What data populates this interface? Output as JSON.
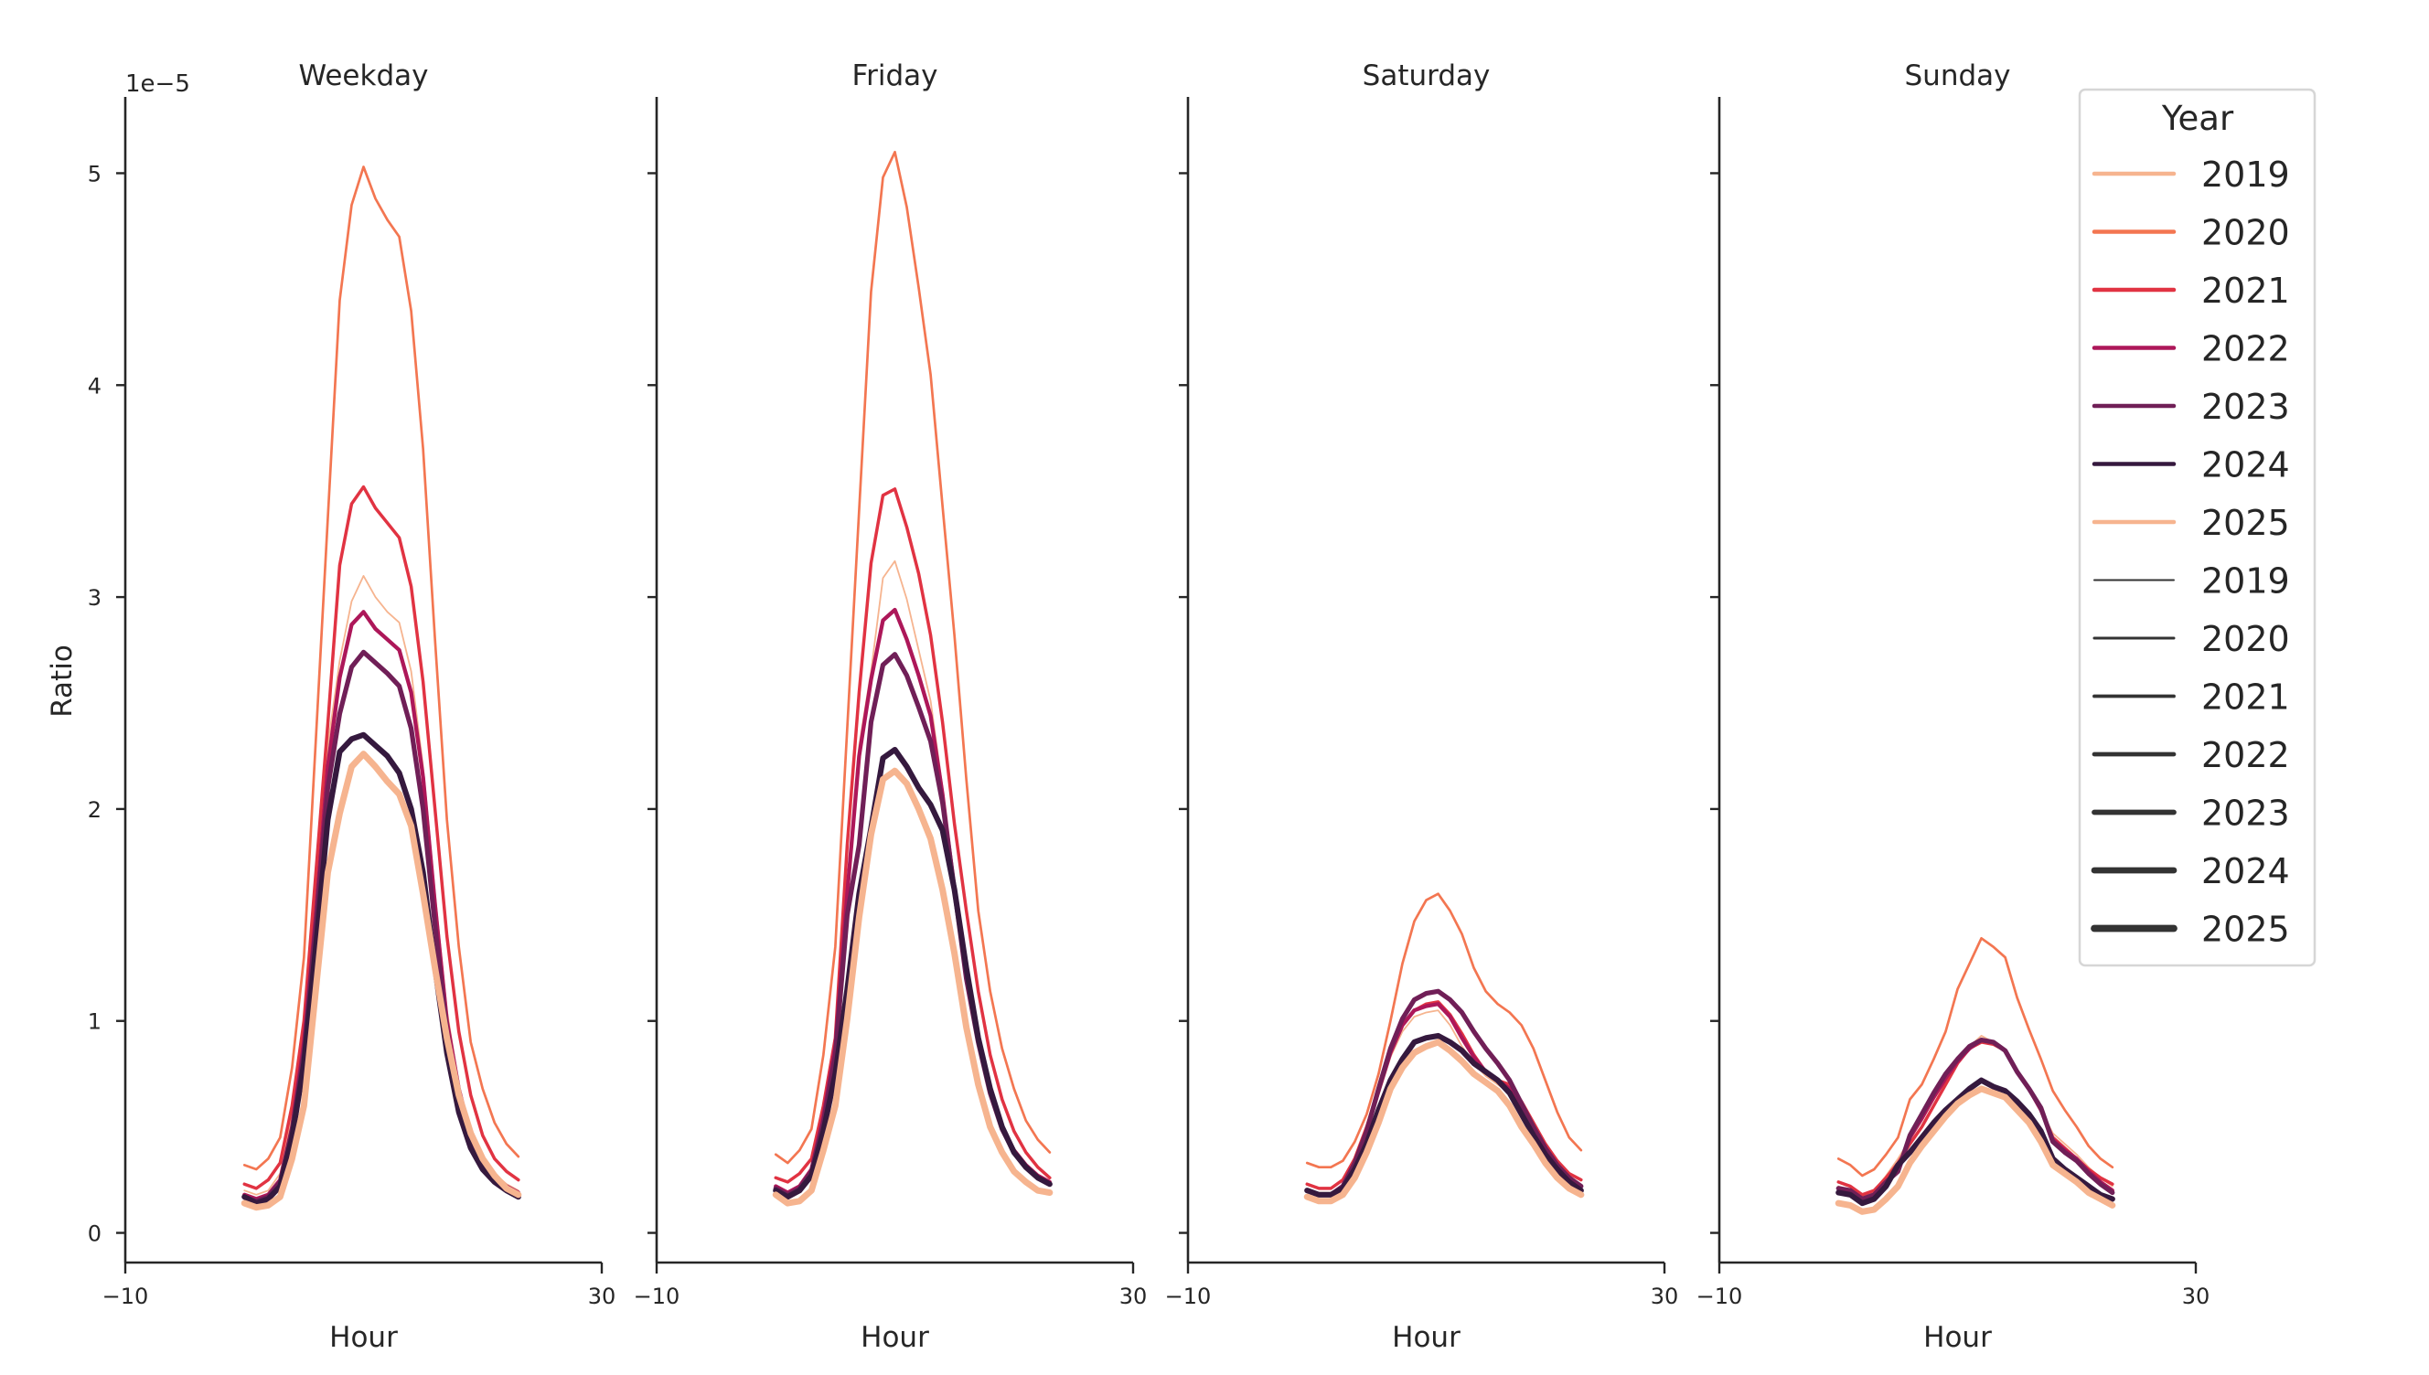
{
  "chart_data": [
    {
      "type": "line",
      "title": "Weekday",
      "xlabel": "Hour",
      "ylabel": "Ratio",
      "y_offset_label": "1e−5",
      "xlim": [
        -10,
        30
      ],
      "ylim": [
        -0.14,
        5.36
      ],
      "xticks": [
        -10,
        30
      ],
      "yticks": [
        0,
        1,
        2,
        3,
        4,
        5
      ],
      "grid": false,
      "x": [
        0,
        1,
        2,
        3,
        4,
        5,
        6,
        7,
        8,
        9,
        10,
        11,
        12,
        13,
        14,
        15,
        16,
        17,
        18,
        19,
        20,
        21,
        22,
        23
      ],
      "series": [
        {
          "name": "2019",
          "values": [
            0.2,
            0.18,
            0.2,
            0.28,
            0.55,
            0.95,
            1.6,
            2.3,
            2.7,
            2.98,
            3.1,
            3.0,
            2.93,
            2.88,
            2.65,
            2.2,
            1.6,
            1.05,
            0.7,
            0.48,
            0.35,
            0.28,
            0.23,
            0.2
          ]
        },
        {
          "name": "2020",
          "values": [
            0.32,
            0.3,
            0.35,
            0.45,
            0.78,
            1.3,
            2.33,
            3.37,
            4.4,
            4.85,
            5.03,
            4.88,
            4.78,
            4.7,
            4.35,
            3.7,
            2.8,
            1.95,
            1.35,
            0.9,
            0.68,
            0.52,
            0.42,
            0.36
          ]
        },
        {
          "name": "2021",
          "values": [
            0.23,
            0.21,
            0.25,
            0.33,
            0.6,
            1.0,
            1.7,
            2.4,
            3.15,
            3.44,
            3.52,
            3.42,
            3.35,
            3.28,
            3.05,
            2.6,
            2.0,
            1.4,
            0.95,
            0.65,
            0.46,
            0.35,
            0.29,
            0.25
          ]
        },
        {
          "name": "2022",
          "values": [
            0.18,
            0.16,
            0.18,
            0.25,
            0.5,
            0.9,
            1.5,
            2.2,
            2.62,
            2.87,
            2.93,
            2.85,
            2.8,
            2.75,
            2.55,
            2.15,
            1.55,
            1.0,
            0.68,
            0.46,
            0.34,
            0.27,
            0.22,
            0.19
          ]
        },
        {
          "name": "2023",
          "values": [
            0.17,
            0.15,
            0.17,
            0.24,
            0.48,
            0.85,
            1.45,
            2.1,
            2.45,
            2.67,
            2.74,
            2.69,
            2.64,
            2.58,
            2.38,
            2.0,
            1.45,
            0.95,
            0.63,
            0.43,
            0.32,
            0.25,
            0.21,
            0.18
          ]
        },
        {
          "name": "2024",
          "values": [
            0.17,
            0.14,
            0.16,
            0.22,
            0.45,
            0.8,
            1.35,
            1.95,
            2.27,
            2.33,
            2.35,
            2.3,
            2.25,
            2.17,
            2.0,
            1.7,
            1.25,
            0.85,
            0.57,
            0.4,
            0.3,
            0.24,
            0.2,
            0.17
          ]
        },
        {
          "name": "2025",
          "values": [
            0.14,
            0.12,
            0.13,
            0.17,
            0.35,
            0.6,
            1.15,
            1.7,
            1.98,
            2.2,
            2.26,
            2.2,
            2.13,
            2.07,
            1.92,
            1.6,
            1.25,
            0.92,
            0.65,
            0.47,
            0.35,
            0.27,
            0.21,
            0.18
          ]
        }
      ]
    },
    {
      "type": "line",
      "title": "Friday",
      "xlabel": "Hour",
      "xlim": [
        -10,
        30
      ],
      "ylim": [
        -0.14,
        5.36
      ],
      "xticks": [
        -10,
        30
      ],
      "grid": false,
      "x": [
        0,
        1,
        2,
        3,
        4,
        5,
        6,
        7,
        8,
        9,
        10,
        11,
        12,
        13,
        14,
        15,
        16,
        17,
        18,
        19,
        20,
        21,
        22,
        23
      ],
      "series": [
        {
          "name": "2019",
          "values": [
            0.22,
            0.19,
            0.22,
            0.3,
            0.56,
            0.9,
            1.65,
            2.3,
            2.65,
            3.09,
            3.17,
            2.99,
            2.75,
            2.51,
            2.1,
            1.64,
            1.22,
            0.92,
            0.68,
            0.5,
            0.39,
            0.32,
            0.27,
            0.24
          ]
        },
        {
          "name": "2020",
          "values": [
            0.37,
            0.33,
            0.39,
            0.49,
            0.84,
            1.35,
            2.38,
            3.41,
            4.44,
            4.98,
            5.1,
            4.84,
            4.46,
            4.05,
            3.43,
            2.82,
            2.14,
            1.52,
            1.14,
            0.87,
            0.68,
            0.53,
            0.44,
            0.38
          ]
        },
        {
          "name": "2021",
          "values": [
            0.26,
            0.24,
            0.28,
            0.35,
            0.6,
            0.92,
            1.83,
            2.55,
            3.16,
            3.48,
            3.51,
            3.33,
            3.11,
            2.82,
            2.41,
            1.93,
            1.52,
            1.14,
            0.84,
            0.63,
            0.48,
            0.38,
            0.31,
            0.26
          ]
        },
        {
          "name": "2022",
          "values": [
            0.22,
            0.19,
            0.22,
            0.3,
            0.55,
            0.88,
            1.6,
            2.25,
            2.61,
            2.89,
            2.94,
            2.8,
            2.63,
            2.44,
            2.07,
            1.62,
            1.21,
            0.91,
            0.67,
            0.5,
            0.39,
            0.32,
            0.27,
            0.24
          ]
        },
        {
          "name": "2023",
          "values": [
            0.21,
            0.18,
            0.21,
            0.29,
            0.52,
            0.84,
            1.5,
            1.83,
            2.41,
            2.68,
            2.73,
            2.63,
            2.48,
            2.32,
            2.03,
            1.62,
            1.2,
            0.9,
            0.66,
            0.49,
            0.38,
            0.31,
            0.26,
            0.23
          ]
        },
        {
          "name": "2024",
          "values": [
            0.2,
            0.17,
            0.2,
            0.27,
            0.48,
            0.75,
            1.15,
            1.6,
            1.91,
            2.24,
            2.28,
            2.2,
            2.1,
            2.02,
            1.9,
            1.62,
            1.25,
            0.92,
            0.68,
            0.5,
            0.38,
            0.31,
            0.26,
            0.23
          ]
        },
        {
          "name": "2025",
          "values": [
            0.18,
            0.14,
            0.15,
            0.2,
            0.39,
            0.6,
            1.01,
            1.49,
            1.88,
            2.14,
            2.18,
            2.12,
            2.0,
            1.86,
            1.62,
            1.32,
            0.97,
            0.7,
            0.5,
            0.38,
            0.29,
            0.24,
            0.2,
            0.19
          ]
        }
      ]
    },
    {
      "type": "line",
      "title": "Saturday",
      "xlabel": "Hour",
      "xlim": [
        -10,
        30
      ],
      "ylim": [
        -0.14,
        5.36
      ],
      "xticks": [
        -10,
        30
      ],
      "grid": false,
      "x": [
        0,
        1,
        2,
        3,
        4,
        5,
        6,
        7,
        8,
        9,
        10,
        11,
        12,
        13,
        14,
        15,
        16,
        17,
        18,
        19,
        20,
        21,
        22,
        23
      ],
      "series": [
        {
          "name": "2019",
          "values": [
            0.2,
            0.19,
            0.19,
            0.22,
            0.32,
            0.47,
            0.65,
            0.83,
            0.95,
            1.02,
            1.04,
            1.05,
            0.98,
            0.88,
            0.8,
            0.74,
            0.7,
            0.66,
            0.57,
            0.47,
            0.38,
            0.3,
            0.25,
            0.21
          ]
        },
        {
          "name": "2020",
          "values": [
            0.33,
            0.31,
            0.31,
            0.34,
            0.43,
            0.56,
            0.75,
            1.0,
            1.27,
            1.47,
            1.57,
            1.6,
            1.52,
            1.41,
            1.25,
            1.14,
            1.08,
            1.04,
            0.98,
            0.87,
            0.72,
            0.57,
            0.45,
            0.39
          ]
        },
        {
          "name": "2021",
          "values": [
            0.23,
            0.21,
            0.21,
            0.25,
            0.35,
            0.5,
            0.68,
            0.86,
            0.98,
            1.05,
            1.08,
            1.09,
            1.03,
            0.94,
            0.84,
            0.76,
            0.72,
            0.7,
            0.62,
            0.52,
            0.42,
            0.34,
            0.28,
            0.25
          ]
        },
        {
          "name": "2022",
          "values": [
            0.2,
            0.18,
            0.18,
            0.22,
            0.33,
            0.48,
            0.67,
            0.85,
            0.98,
            1.05,
            1.07,
            1.08,
            1.02,
            0.92,
            0.83,
            0.76,
            0.72,
            0.68,
            0.58,
            0.48,
            0.38,
            0.3,
            0.25,
            0.22
          ]
        },
        {
          "name": "2023",
          "values": [
            0.2,
            0.18,
            0.18,
            0.22,
            0.33,
            0.48,
            0.68,
            0.87,
            1.01,
            1.1,
            1.13,
            1.14,
            1.1,
            1.04,
            0.95,
            0.87,
            0.8,
            0.72,
            0.61,
            0.5,
            0.4,
            0.32,
            0.26,
            0.22
          ]
        },
        {
          "name": "2024",
          "values": [
            0.2,
            0.18,
            0.18,
            0.21,
            0.3,
            0.42,
            0.58,
            0.72,
            0.82,
            0.9,
            0.92,
            0.93,
            0.9,
            0.86,
            0.8,
            0.76,
            0.72,
            0.66,
            0.56,
            0.46,
            0.37,
            0.3,
            0.24,
            0.2
          ]
        },
        {
          "name": "2025",
          "values": [
            0.17,
            0.15,
            0.15,
            0.18,
            0.26,
            0.38,
            0.52,
            0.68,
            0.78,
            0.85,
            0.88,
            0.9,
            0.86,
            0.81,
            0.75,
            0.71,
            0.67,
            0.6,
            0.5,
            0.42,
            0.33,
            0.26,
            0.21,
            0.18
          ]
        }
      ]
    },
    {
      "type": "line",
      "title": "Sunday",
      "xlabel": "Hour",
      "xlim": [
        -10,
        30
      ],
      "ylim": [
        -0.14,
        5.36
      ],
      "xticks": [
        -10,
        30
      ],
      "grid": false,
      "x": [
        0,
        1,
        2,
        3,
        4,
        5,
        6,
        7,
        8,
        9,
        10,
        11,
        12,
        13,
        14,
        15,
        16,
        17,
        18,
        19,
        20,
        21,
        22,
        23
      ],
      "series": [
        {
          "name": "2019",
          "values": [
            0.22,
            0.2,
            0.17,
            0.2,
            0.27,
            0.35,
            0.44,
            0.53,
            0.63,
            0.72,
            0.81,
            0.88,
            0.93,
            0.9,
            0.85,
            0.76,
            0.68,
            0.58,
            0.47,
            0.42,
            0.37,
            0.31,
            0.26,
            0.22
          ]
        },
        {
          "name": "2020",
          "values": [
            0.35,
            0.32,
            0.27,
            0.3,
            0.37,
            0.45,
            0.63,
            0.7,
            0.82,
            0.95,
            1.15,
            1.27,
            1.39,
            1.35,
            1.3,
            1.11,
            0.96,
            0.82,
            0.67,
            0.58,
            0.5,
            0.41,
            0.35,
            0.31
          ]
        },
        {
          "name": "2021",
          "values": [
            0.24,
            0.22,
            0.18,
            0.2,
            0.26,
            0.33,
            0.42,
            0.5,
            0.6,
            0.7,
            0.8,
            0.87,
            0.9,
            0.89,
            0.86,
            0.76,
            0.68,
            0.58,
            0.45,
            0.4,
            0.35,
            0.3,
            0.26,
            0.23
          ]
        },
        {
          "name": "2022",
          "values": [
            0.21,
            0.19,
            0.15,
            0.18,
            0.24,
            0.3,
            0.45,
            0.54,
            0.64,
            0.73,
            0.81,
            0.87,
            0.91,
            0.9,
            0.86,
            0.76,
            0.68,
            0.58,
            0.44,
            0.39,
            0.35,
            0.29,
            0.24,
            0.2
          ]
        },
        {
          "name": "2023",
          "values": [
            0.21,
            0.2,
            0.16,
            0.18,
            0.24,
            0.29,
            0.46,
            0.56,
            0.66,
            0.75,
            0.82,
            0.88,
            0.91,
            0.9,
            0.86,
            0.76,
            0.68,
            0.59,
            0.43,
            0.38,
            0.34,
            0.28,
            0.23,
            0.19
          ]
        },
        {
          "name": "2024",
          "values": [
            0.19,
            0.18,
            0.14,
            0.16,
            0.22,
            0.32,
            0.38,
            0.45,
            0.52,
            0.58,
            0.63,
            0.68,
            0.72,
            0.69,
            0.67,
            0.62,
            0.56,
            0.48,
            0.35,
            0.3,
            0.26,
            0.22,
            0.18,
            0.16
          ]
        },
        {
          "name": "2025",
          "values": [
            0.14,
            0.13,
            0.1,
            0.11,
            0.16,
            0.22,
            0.33,
            0.41,
            0.48,
            0.55,
            0.61,
            0.65,
            0.68,
            0.66,
            0.64,
            0.58,
            0.52,
            0.43,
            0.32,
            0.28,
            0.24,
            0.19,
            0.16,
            0.13
          ]
        }
      ]
    }
  ],
  "legend": {
    "title": "Year",
    "placement": "upper-right",
    "hue_entries": [
      {
        "label": "2019",
        "color": "#f6b48f"
      },
      {
        "label": "2020",
        "color": "#f37651"
      },
      {
        "label": "2021",
        "color": "#e13342"
      },
      {
        "label": "2022",
        "color": "#ad1759"
      },
      {
        "label": "2023",
        "color": "#701f57"
      },
      {
        "label": "2024",
        "color": "#35193e"
      },
      {
        "label": "2025",
        "color": "#f6b48f"
      }
    ],
    "size_entries": [
      {
        "label": "2019"
      },
      {
        "label": "2020"
      },
      {
        "label": "2021"
      },
      {
        "label": "2022"
      },
      {
        "label": "2023"
      },
      {
        "label": "2024"
      },
      {
        "label": "2025"
      }
    ],
    "size_color": "#333333"
  }
}
